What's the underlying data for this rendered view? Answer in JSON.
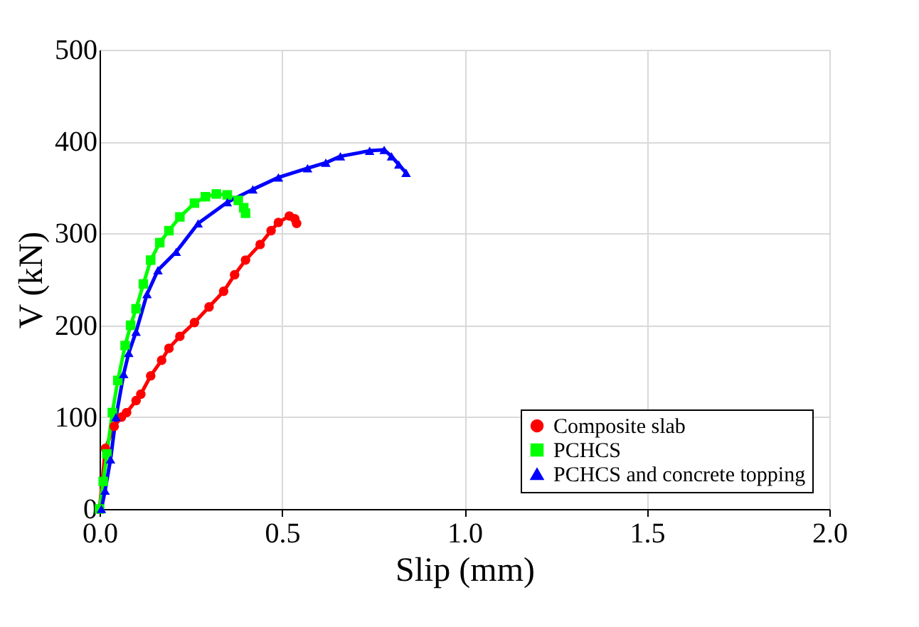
{
  "chart_data": {
    "type": "line",
    "xlabel": "Slip (mm)",
    "ylabel": "V (kN)",
    "xlim": [
      0,
      2
    ],
    "ylim": [
      0,
      500
    ],
    "xticks": [
      {
        "value": 0,
        "label": "0.0"
      },
      {
        "value": 0.5,
        "label": "0.5"
      },
      {
        "value": 1,
        "label": "1.0"
      },
      {
        "value": 1.5,
        "label": "1.5"
      },
      {
        "value": 2,
        "label": "2.0"
      }
    ],
    "yticks": [
      0,
      100,
      200,
      300,
      400,
      500
    ],
    "grid": true,
    "legend": "bottom right",
    "line_style": "solid",
    "series": [
      {
        "name": "Composite slab",
        "color": "#ff0000",
        "marker": "circle",
        "x": [
          0,
          0.016,
          0.04,
          0.06,
          0.074,
          0.1,
          0.113,
          0.14,
          0.17,
          0.19,
          0.22,
          0.26,
          0.3,
          0.34,
          0.37,
          0.4,
          0.44,
          0.47,
          0.49,
          0.52,
          0.535,
          0.54
        ],
        "values": [
          0,
          66,
          90,
          100,
          105,
          118,
          125,
          145,
          162,
          175,
          188,
          203,
          220,
          237,
          255,
          271,
          288,
          303,
          312,
          319,
          316,
          311
        ]
      },
      {
        "name": "PCHCS",
        "color": "#00ff00",
        "marker": "square",
        "x": [
          0,
          0.01,
          0.02,
          0.035,
          0.05,
          0.07,
          0.085,
          0.1,
          0.12,
          0.14,
          0.165,
          0.19,
          0.22,
          0.26,
          0.29,
          0.32,
          0.35,
          0.38,
          0.395,
          0.4
        ],
        "values": [
          0,
          30,
          60,
          105,
          140,
          178,
          200,
          218,
          245,
          271,
          290,
          303,
          318,
          333,
          340,
          343,
          342,
          336,
          328,
          322
        ]
      },
      {
        "name": "PCHCS and concrete topping",
        "color": "#0000ff",
        "marker": "triangle",
        "x": [
          0.005,
          0.015,
          0.03,
          0.045,
          0.066,
          0.08,
          0.1,
          0.13,
          0.16,
          0.21,
          0.27,
          0.35,
          0.42,
          0.49,
          0.57,
          0.62,
          0.66,
          0.74,
          0.78,
          0.8,
          0.82,
          0.84
        ],
        "values": [
          0,
          20,
          54,
          100,
          147,
          170,
          193,
          234,
          260,
          280,
          311,
          334,
          348,
          361,
          371,
          377,
          384,
          390,
          391,
          384,
          375,
          366
        ]
      }
    ]
  }
}
